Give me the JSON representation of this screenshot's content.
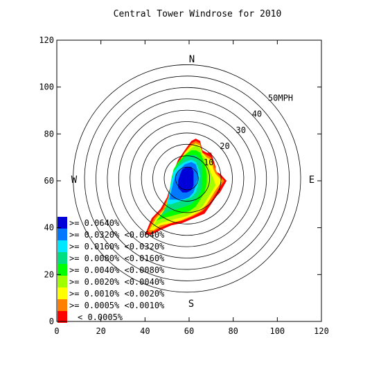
{
  "chart_data": {
    "type": "contour-windrose",
    "title": "Central Tower Windrose for 2010",
    "xlim": [
      0,
      120
    ],
    "ylim": [
      0,
      120
    ],
    "x_ticks": [
      0,
      20,
      40,
      60,
      80,
      100,
      120
    ],
    "y_ticks": [
      0,
      20,
      40,
      60,
      80,
      100,
      120
    ],
    "center": [
      59,
      61
    ],
    "ring_radius_step": 5,
    "ring_count": 10,
    "ring_labels": [
      {
        "speed": 10,
        "label": "10"
      },
      {
        "speed": 20,
        "label": "20"
      },
      {
        "speed": 30,
        "label": "30"
      },
      {
        "speed": 40,
        "label": "40"
      },
      {
        "speed": 50,
        "label": "50MPH"
      }
    ],
    "directions": {
      "north": "N",
      "south": "S",
      "east": "E",
      "west": "W"
    },
    "legend": [
      {
        "label": ">= 0.0640%",
        "color": "#0000d8"
      },
      {
        "label": ">= 0.0320% <0.0640%",
        "color": "#0078ff"
      },
      {
        "label": ">= 0.0160% <0.0320%",
        "color": "#00e8ff"
      },
      {
        "label": ">= 0.0080% <0.0160%",
        "color": "#00e080"
      },
      {
        "label": ">= 0.0040% <0.0080%",
        "color": "#00ff00"
      },
      {
        "label": ">= 0.0020% <0.0040%",
        "color": "#a0ff00"
      },
      {
        "label": ">= 0.0010% <0.0020%",
        "color": "#ffff00"
      },
      {
        "label": ">= 0.0005% <0.0010%",
        "color": "#ff8000"
      },
      {
        "label": "< 0.0005%",
        "color": "#ff0000"
      }
    ],
    "contours": [
      {
        "level": "< 0.0005%",
        "color": "#ff0000",
        "points": [
          [
            40,
            37
          ],
          [
            43,
            44
          ],
          [
            47,
            48
          ],
          [
            50,
            53
          ],
          [
            52,
            59
          ],
          [
            53,
            64
          ],
          [
            55,
            69
          ],
          [
            58,
            73
          ],
          [
            61,
            77
          ],
          [
            63,
            78
          ],
          [
            65,
            77
          ],
          [
            66,
            73
          ],
          [
            68,
            72
          ],
          [
            70,
            72
          ],
          [
            72,
            66
          ],
          [
            72,
            64
          ],
          [
            74,
            63
          ],
          [
            77,
            60
          ],
          [
            74,
            55
          ],
          [
            72,
            53
          ],
          [
            70,
            50
          ],
          [
            67,
            46
          ],
          [
            62,
            44
          ],
          [
            57,
            42
          ],
          [
            52,
            41
          ],
          [
            47,
            39
          ],
          [
            43,
            37
          ]
        ]
      },
      {
        "level": ">= 0.0005% <0.0010%",
        "color": "#ff8000",
        "points": [
          [
            41,
            38
          ],
          [
            44,
            44
          ],
          [
            48,
            48
          ],
          [
            51,
            54
          ],
          [
            53,
            60
          ],
          [
            54,
            65
          ],
          [
            56,
            69
          ],
          [
            58,
            72
          ],
          [
            61,
            76
          ],
          [
            63,
            77
          ],
          [
            65,
            76
          ],
          [
            66,
            72
          ],
          [
            68,
            71
          ],
          [
            70,
            70
          ],
          [
            72,
            65
          ],
          [
            73,
            63
          ],
          [
            76,
            60
          ],
          [
            73,
            56
          ],
          [
            71,
            53
          ],
          [
            69,
            50
          ],
          [
            66,
            47
          ],
          [
            62,
            45
          ],
          [
            57,
            43
          ],
          [
            52,
            42
          ],
          [
            47,
            40
          ],
          [
            43,
            38
          ]
        ]
      },
      {
        "level": ">= 0.0010% <0.0020%",
        "color": "#ffff00",
        "points": [
          [
            42,
            39
          ],
          [
            45,
            44
          ],
          [
            49,
            48
          ],
          [
            51,
            54
          ],
          [
            53,
            60
          ],
          [
            54,
            65
          ],
          [
            56,
            69
          ],
          [
            58,
            72
          ],
          [
            61,
            75
          ],
          [
            63,
            76
          ],
          [
            65,
            75
          ],
          [
            66,
            72
          ],
          [
            68,
            70
          ],
          [
            70,
            69
          ],
          [
            71,
            65
          ],
          [
            72,
            63
          ],
          [
            75,
            60
          ],
          [
            72,
            56
          ],
          [
            70,
            53
          ],
          [
            68,
            50
          ],
          [
            65,
            47
          ],
          [
            61,
            45
          ],
          [
            56,
            43
          ],
          [
            52,
            42
          ],
          [
            47,
            41
          ],
          [
            44,
            39
          ]
        ]
      },
      {
        "level": ">= 0.0020% <0.0040%",
        "color": "#a0ff00",
        "points": [
          [
            43,
            40
          ],
          [
            46,
            44
          ],
          [
            49,
            48
          ],
          [
            51,
            54
          ],
          [
            53,
            60
          ],
          [
            54,
            65
          ],
          [
            56,
            69
          ],
          [
            58,
            71
          ],
          [
            61,
            74
          ],
          [
            63,
            75
          ],
          [
            65,
            74
          ],
          [
            66,
            71
          ],
          [
            68,
            69
          ],
          [
            69,
            66
          ],
          [
            70,
            63
          ],
          [
            71,
            61
          ],
          [
            72,
            58
          ],
          [
            70,
            55
          ],
          [
            68,
            52
          ],
          [
            66,
            49
          ],
          [
            63,
            47
          ],
          [
            59,
            45
          ],
          [
            55,
            44
          ],
          [
            51,
            43
          ],
          [
            47,
            42
          ],
          [
            45,
            41
          ]
        ]
      },
      {
        "level": ">= 0.0040% <0.0080%",
        "color": "#00ff00",
        "points": [
          [
            45,
            43
          ],
          [
            48,
            46
          ],
          [
            50,
            50
          ],
          [
            51,
            55
          ],
          [
            52,
            61
          ],
          [
            53,
            65
          ],
          [
            55,
            68
          ],
          [
            58,
            71
          ],
          [
            61,
            73
          ],
          [
            63,
            73
          ],
          [
            65,
            72
          ],
          [
            66,
            70
          ],
          [
            67,
            67
          ],
          [
            68,
            63
          ],
          [
            68,
            59
          ],
          [
            67,
            55
          ],
          [
            65,
            52
          ],
          [
            63,
            49
          ],
          [
            60,
            47
          ],
          [
            56,
            46
          ],
          [
            52,
            45
          ],
          [
            48,
            44
          ]
        ]
      },
      {
        "level": ">= 0.0080% <0.0160%",
        "color": "#00e080",
        "points": [
          [
            47,
            45
          ],
          [
            50,
            49
          ],
          [
            51,
            54
          ],
          [
            52,
            60
          ],
          [
            53,
            64
          ],
          [
            55,
            67
          ],
          [
            58,
            70
          ],
          [
            61,
            71
          ],
          [
            63,
            71
          ],
          [
            65,
            69
          ],
          [
            66,
            66
          ],
          [
            66,
            62
          ],
          [
            66,
            58
          ],
          [
            65,
            55
          ],
          [
            63,
            52
          ],
          [
            61,
            50
          ],
          [
            58,
            49
          ],
          [
            55,
            48
          ],
          [
            51,
            47
          ],
          [
            49,
            46
          ]
        ]
      },
      {
        "level": ">= 0.0160% <0.0320%",
        "color": "#00e8ff",
        "points": [
          [
            50,
            50
          ],
          [
            51,
            55
          ],
          [
            52,
            60
          ],
          [
            53,
            64
          ],
          [
            55,
            66
          ],
          [
            58,
            68
          ],
          [
            61,
            69
          ],
          [
            63,
            68
          ],
          [
            64,
            66
          ],
          [
            65,
            62
          ],
          [
            64,
            58
          ],
          [
            63,
            55
          ],
          [
            61,
            53
          ],
          [
            58,
            52
          ],
          [
            55,
            51
          ],
          [
            52,
            50
          ]
        ]
      },
      {
        "level": ">= 0.0320% <0.0640%",
        "color": "#0078ff",
        "points": [
          [
            51,
            52
          ],
          [
            52,
            56
          ],
          [
            53,
            60
          ],
          [
            54,
            63
          ],
          [
            56,
            65
          ],
          [
            58,
            67
          ],
          [
            61,
            68
          ],
          [
            63,
            67
          ],
          [
            64,
            64
          ],
          [
            64,
            61
          ],
          [
            63,
            58
          ],
          [
            62,
            55
          ],
          [
            60,
            53
          ],
          [
            57,
            52
          ],
          [
            54,
            52
          ]
        ]
      },
      {
        "level": ">= 0.0640%",
        "color": "#0000d8",
        "points": [
          [
            55,
            57
          ],
          [
            55,
            60
          ],
          [
            56,
            63
          ],
          [
            57,
            65
          ],
          [
            59,
            66
          ],
          [
            61,
            66
          ],
          [
            62,
            64
          ],
          [
            62,
            61
          ],
          [
            62,
            58
          ],
          [
            61,
            56
          ],
          [
            59,
            55
          ],
          [
            57,
            55
          ]
        ]
      }
    ]
  }
}
